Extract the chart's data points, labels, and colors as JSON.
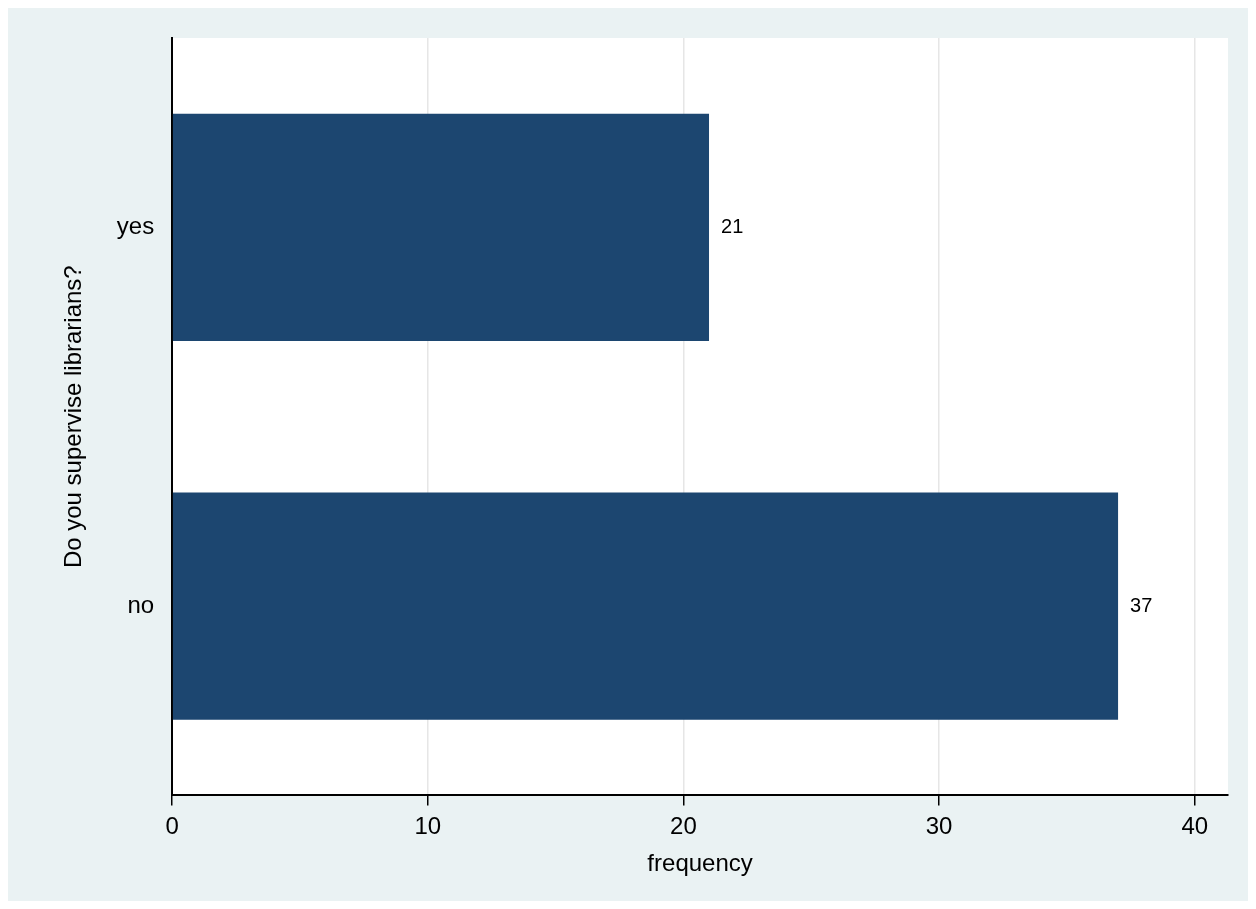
{
  "chart_data": {
    "type": "bar",
    "orientation": "horizontal",
    "xlabel": "frequency",
    "ylabel": "Do you supervise librarians?",
    "categories": [
      "yes",
      "no"
    ],
    "values": [
      21,
      37
    ],
    "color": "#1c4670",
    "data_labels": true,
    "xlim": [
      0,
      41.3
    ],
    "xticks": [
      0,
      10,
      20,
      30,
      40
    ],
    "grid": "x",
    "legend": false
  }
}
